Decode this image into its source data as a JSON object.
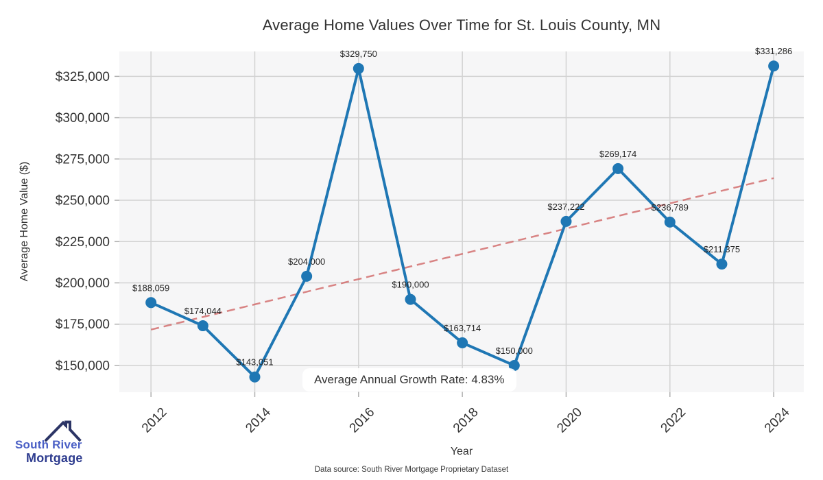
{
  "chart": {
    "title": "Average Home Values Over Time for St. Louis County, MN",
    "xlabel": "Year",
    "ylabel": "Average Home Value ($)",
    "annotation": "Average Annual Growth Rate: 4.83%",
    "source_note": "Data source: South River Mortgage Proprietary Dataset"
  },
  "chart_data": {
    "type": "line",
    "title": "Average Home Values Over Time for St. Louis County, MN",
    "xlabel": "Year",
    "ylabel": "Average Home Value ($)",
    "x": [
      2012,
      2013,
      2014,
      2015,
      2016,
      2017,
      2018,
      2019,
      2020,
      2021,
      2022,
      2023,
      2024
    ],
    "series": [
      {
        "name": "Average Home Value",
        "values": [
          188059,
          174044,
          143051,
          204000,
          329750,
          190000,
          163714,
          150000,
          237222,
          269174,
          236789,
          211375,
          331286
        ]
      }
    ],
    "point_labels": [
      "$188,059",
      "$174,044",
      "$143,051",
      "$204,000",
      "$329,750",
      "$190,000",
      "$163,714",
      "$150,000",
      "$237,222",
      "$269,174",
      "$236,789",
      "$211,375",
      "$331,286"
    ],
    "x_ticks": [
      2012,
      2014,
      2016,
      2018,
      2020,
      2022,
      2024
    ],
    "y_ticks": [
      150000,
      175000,
      200000,
      225000,
      250000,
      275000,
      300000,
      325000
    ],
    "y_tick_labels": [
      "$150,000",
      "$175,000",
      "$200,000",
      "$225,000",
      "$250,000",
      "$275,000",
      "$300,000",
      "$325,000"
    ],
    "xlim": [
      2011.39,
      2024.58
    ],
    "ylim": [
      133800,
      340100
    ],
    "grid": true,
    "legend": "none",
    "trend_line": {
      "type": "linear_fit",
      "style": "dashed",
      "x": [
        2012,
        2024
      ],
      "values": [
        171700,
        263400
      ]
    },
    "annotation": "Average Annual Growth Rate: 4.83%",
    "colors": {
      "line": "#1f77b4",
      "marker": "#1f77b4",
      "trend": "#cd5c5c",
      "plot_bg": "#f6f6f7",
      "grid": "#d2d2d2",
      "tick": "#b0b0b0",
      "tick_label": "#333333",
      "point_label": "#262626"
    }
  },
  "logo": {
    "line1": "South River",
    "line2": "Mortgage",
    "colors": {
      "line1": "#4a5fc5",
      "line2": "#2e3c8f",
      "roof": "#2c3566"
    }
  }
}
